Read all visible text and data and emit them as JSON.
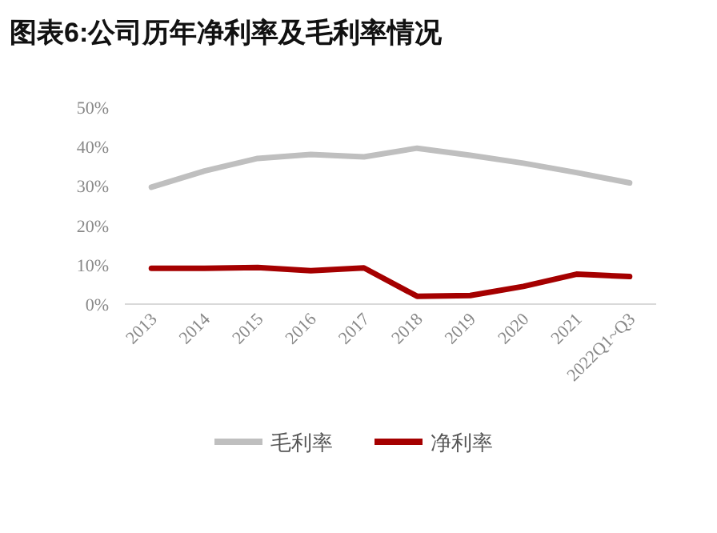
{
  "chart_data": {
    "type": "line",
    "title": "图表6:公司历年净利率及毛利率情况",
    "categories": [
      "2013",
      "2014",
      "2015",
      "2016",
      "2017",
      "2018",
      "2019",
      "2020",
      "2021",
      "2022Q1~Q3"
    ],
    "series": [
      {
        "name": "毛利率",
        "color": "#bfbfbf",
        "values": [
          29.7,
          33.8,
          37.0,
          38.0,
          37.4,
          39.6,
          37.8,
          35.8,
          33.4,
          30.8
        ]
      },
      {
        "name": "净利率",
        "color": "#a50000",
        "values": [
          9.1,
          9.1,
          9.3,
          8.5,
          9.2,
          2.0,
          2.2,
          4.5,
          7.6,
          7.0
        ]
      }
    ],
    "ylim": [
      0,
      50
    ],
    "yticks": [
      {
        "value": 0,
        "label": "0%"
      },
      {
        "value": 10,
        "label": "10%"
      },
      {
        "value": 20,
        "label": "20%"
      },
      {
        "value": 30,
        "label": "30%"
      },
      {
        "value": 40,
        "label": "40%"
      },
      {
        "value": 50,
        "label": "50%"
      }
    ],
    "grid": false,
    "legend": "bottom",
    "marker": "none",
    "line_style": "solid"
  }
}
